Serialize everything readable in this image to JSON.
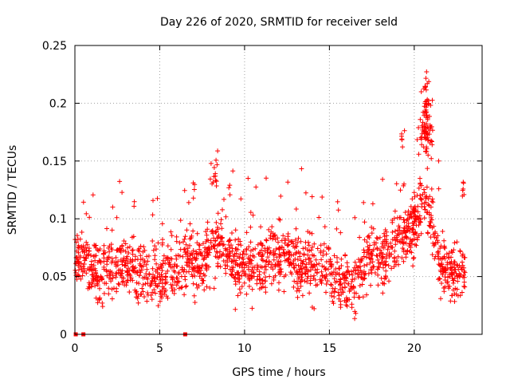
{
  "chart_data": {
    "type": "scatter",
    "title": "Day 226 of 2020, SRMTID for receiver seld",
    "xlabel": "GPS time / hours",
    "ylabel": "SRMTID / TECUs",
    "xlim": [
      0,
      24
    ],
    "ylim": [
      0,
      0.25
    ],
    "x_ticks": [
      "0",
      "5",
      "10",
      "15",
      "20"
    ],
    "x_tick_values": [
      0,
      5,
      10,
      15,
      20
    ],
    "y_ticks": [
      "0",
      "0.05",
      "0.1",
      "0.15",
      "0.2",
      "0.25"
    ],
    "y_tick_values": [
      0,
      0.05,
      0.1,
      0.15,
      0.2,
      0.25
    ],
    "grid": true,
    "legend": "none",
    "marker": "plus",
    "color": "#ff0000",
    "zero_points_x": [
      0.05,
      0.5,
      6.5
    ],
    "trend": [
      [
        0.0,
        0.07
      ],
      [
        0.5,
        0.065
      ],
      [
        1.0,
        0.06
      ],
      [
        1.5,
        0.05
      ],
      [
        2.0,
        0.055
      ],
      [
        2.5,
        0.06
      ],
      [
        3.0,
        0.062
      ],
      [
        3.5,
        0.058
      ],
      [
        4.0,
        0.055
      ],
      [
        4.5,
        0.05
      ],
      [
        5.0,
        0.053
      ],
      [
        5.5,
        0.058
      ],
      [
        6.0,
        0.06
      ],
      [
        6.5,
        0.062
      ],
      [
        7.0,
        0.06
      ],
      [
        7.5,
        0.058
      ],
      [
        8.0,
        0.075
      ],
      [
        8.5,
        0.08
      ],
      [
        9.0,
        0.07
      ],
      [
        9.5,
        0.062
      ],
      [
        10.0,
        0.058
      ],
      [
        10.5,
        0.055
      ],
      [
        11.0,
        0.058
      ],
      [
        11.5,
        0.062
      ],
      [
        12.0,
        0.068
      ],
      [
        12.5,
        0.07
      ],
      [
        13.0,
        0.065
      ],
      [
        13.5,
        0.058
      ],
      [
        14.0,
        0.062
      ],
      [
        14.5,
        0.06
      ],
      [
        15.0,
        0.055
      ],
      [
        15.5,
        0.048
      ],
      [
        16.0,
        0.042
      ],
      [
        16.5,
        0.045
      ],
      [
        17.0,
        0.055
      ],
      [
        17.5,
        0.072
      ],
      [
        18.0,
        0.068
      ],
      [
        18.5,
        0.072
      ],
      [
        19.0,
        0.08
      ],
      [
        19.5,
        0.085
      ],
      [
        20.0,
        0.095
      ],
      [
        20.5,
        0.12
      ],
      [
        21.0,
        0.1
      ],
      [
        21.5,
        0.065
      ],
      [
        22.0,
        0.055
      ],
      [
        22.5,
        0.05
      ],
      [
        23.0,
        0.055
      ]
    ],
    "spread": 0.022,
    "n_points": 1800,
    "clusters": [
      {
        "x": 20.7,
        "y": 0.185,
        "dx": 0.35,
        "dy": 0.03,
        "n": 90
      },
      {
        "x": 8.2,
        "y": 0.14,
        "dx": 0.25,
        "dy": 0.015,
        "n": 14
      },
      {
        "x": 19.3,
        "y": 0.17,
        "dx": 0.1,
        "dy": 0.006,
        "n": 6
      },
      {
        "x": 22.9,
        "y": 0.125,
        "dx": 0.1,
        "dy": 0.008,
        "n": 6
      }
    ]
  }
}
